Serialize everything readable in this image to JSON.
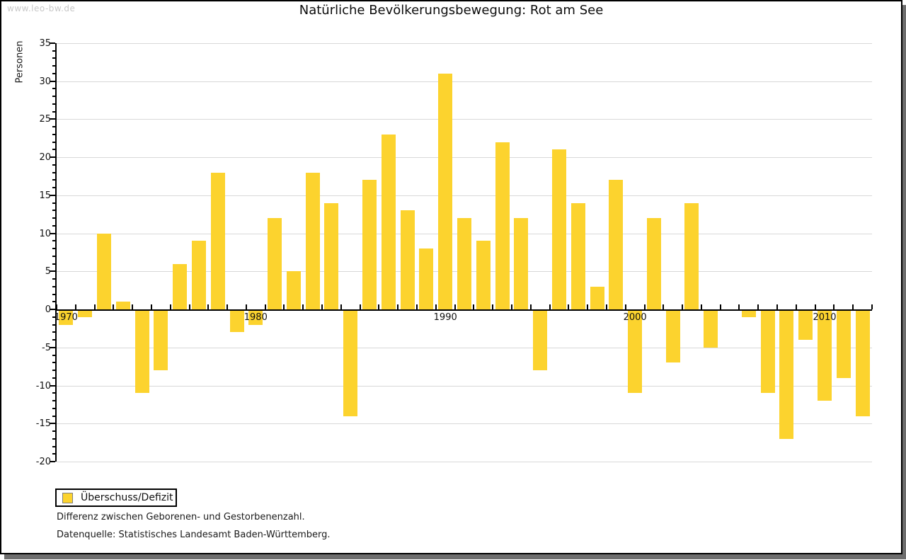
{
  "watermark": "www.leo-bw.de",
  "chart_data": {
    "type": "bar",
    "title": "Natürliche Bevölkerungsbewegung: Rot am See",
    "xlabel": "",
    "ylabel": "Personen",
    "ylim": [
      -20,
      35
    ],
    "y_major_tick_step": 5,
    "y_minor_tick_step": 1,
    "grid": true,
    "categories": [
      1970,
      1971,
      1972,
      1973,
      1974,
      1975,
      1976,
      1977,
      1978,
      1979,
      1980,
      1981,
      1982,
      1983,
      1984,
      1985,
      1986,
      1987,
      1988,
      1989,
      1990,
      1991,
      1992,
      1993,
      1994,
      1995,
      1996,
      1997,
      1998,
      1999,
      2000,
      2001,
      2002,
      2003,
      2004,
      2005,
      2006,
      2007,
      2008,
      2009,
      2010,
      2011,
      2012
    ],
    "values": [
      -2,
      -1,
      10,
      1,
      -11,
      -8,
      6,
      9,
      18,
      -3,
      -2,
      12,
      5,
      18,
      14,
      -14,
      17,
      23,
      13,
      8,
      31,
      12,
      9,
      22,
      12,
      -8,
      21,
      14,
      3,
      17,
      -11,
      12,
      -7,
      14,
      -5,
      0,
      -1,
      -11,
      -17,
      -4,
      -12,
      -9,
      -14
    ],
    "x_tick_labels": [
      "1970",
      "1980",
      "1990",
      "2000",
      "2010"
    ],
    "legend": {
      "position": "bottom-left",
      "items": [
        {
          "label": "Überschuss/Defizit",
          "color": "#fcd32e"
        }
      ]
    },
    "colors": {
      "bar": "#fcd32e",
      "grid": "#d8d8d8",
      "axis": "#000000",
      "swatch_border": "#808080",
      "shadow": "#6e6e6e"
    }
  },
  "footnotes": [
    "Differenz zwischen Geborenen- und Gestorbenenzahl.",
    "Datenquelle: Statistisches Landesamt Baden-Württemberg."
  ]
}
